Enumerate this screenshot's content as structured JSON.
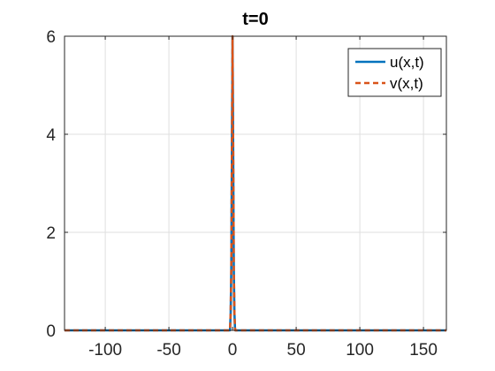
{
  "chart_data": {
    "type": "line",
    "title": "t=0",
    "xlabel": "",
    "ylabel": "",
    "xlim": [
      -132,
      168
    ],
    "ylim": [
      0,
      6
    ],
    "xticks": [
      -100,
      -50,
      0,
      50,
      100,
      150
    ],
    "xtick_labels": [
      "-100",
      "-50",
      "0",
      "50",
      "100",
      "150"
    ],
    "yticks": [
      0,
      2,
      4,
      6
    ],
    "ytick_labels": [
      "0",
      "2",
      "4",
      "6"
    ],
    "grid": true,
    "legend_position": "top-right",
    "series": [
      {
        "name": "u(x,t)",
        "color": "#0072BD",
        "style": "solid",
        "x": [
          -132,
          -2.0,
          -1.5,
          -1.0,
          -0.5,
          0.0,
          0.5,
          1.0,
          1.5,
          2.0,
          168
        ],
        "y": [
          0,
          0.0,
          0.35,
          1.25,
          3.8,
          6.0,
          3.8,
          1.25,
          0.35,
          0.0,
          0
        ]
      },
      {
        "name": "v(x,t)",
        "color": "#D95319",
        "style": "dashed",
        "x": [
          -132,
          -2.0,
          -1.5,
          -1.0,
          -0.5,
          0.0,
          0.5,
          1.0,
          1.5,
          2.0,
          168
        ],
        "y": [
          0,
          0.0,
          0.35,
          1.25,
          3.8,
          6.0,
          3.8,
          1.25,
          0.35,
          0.0,
          0
        ]
      }
    ]
  }
}
